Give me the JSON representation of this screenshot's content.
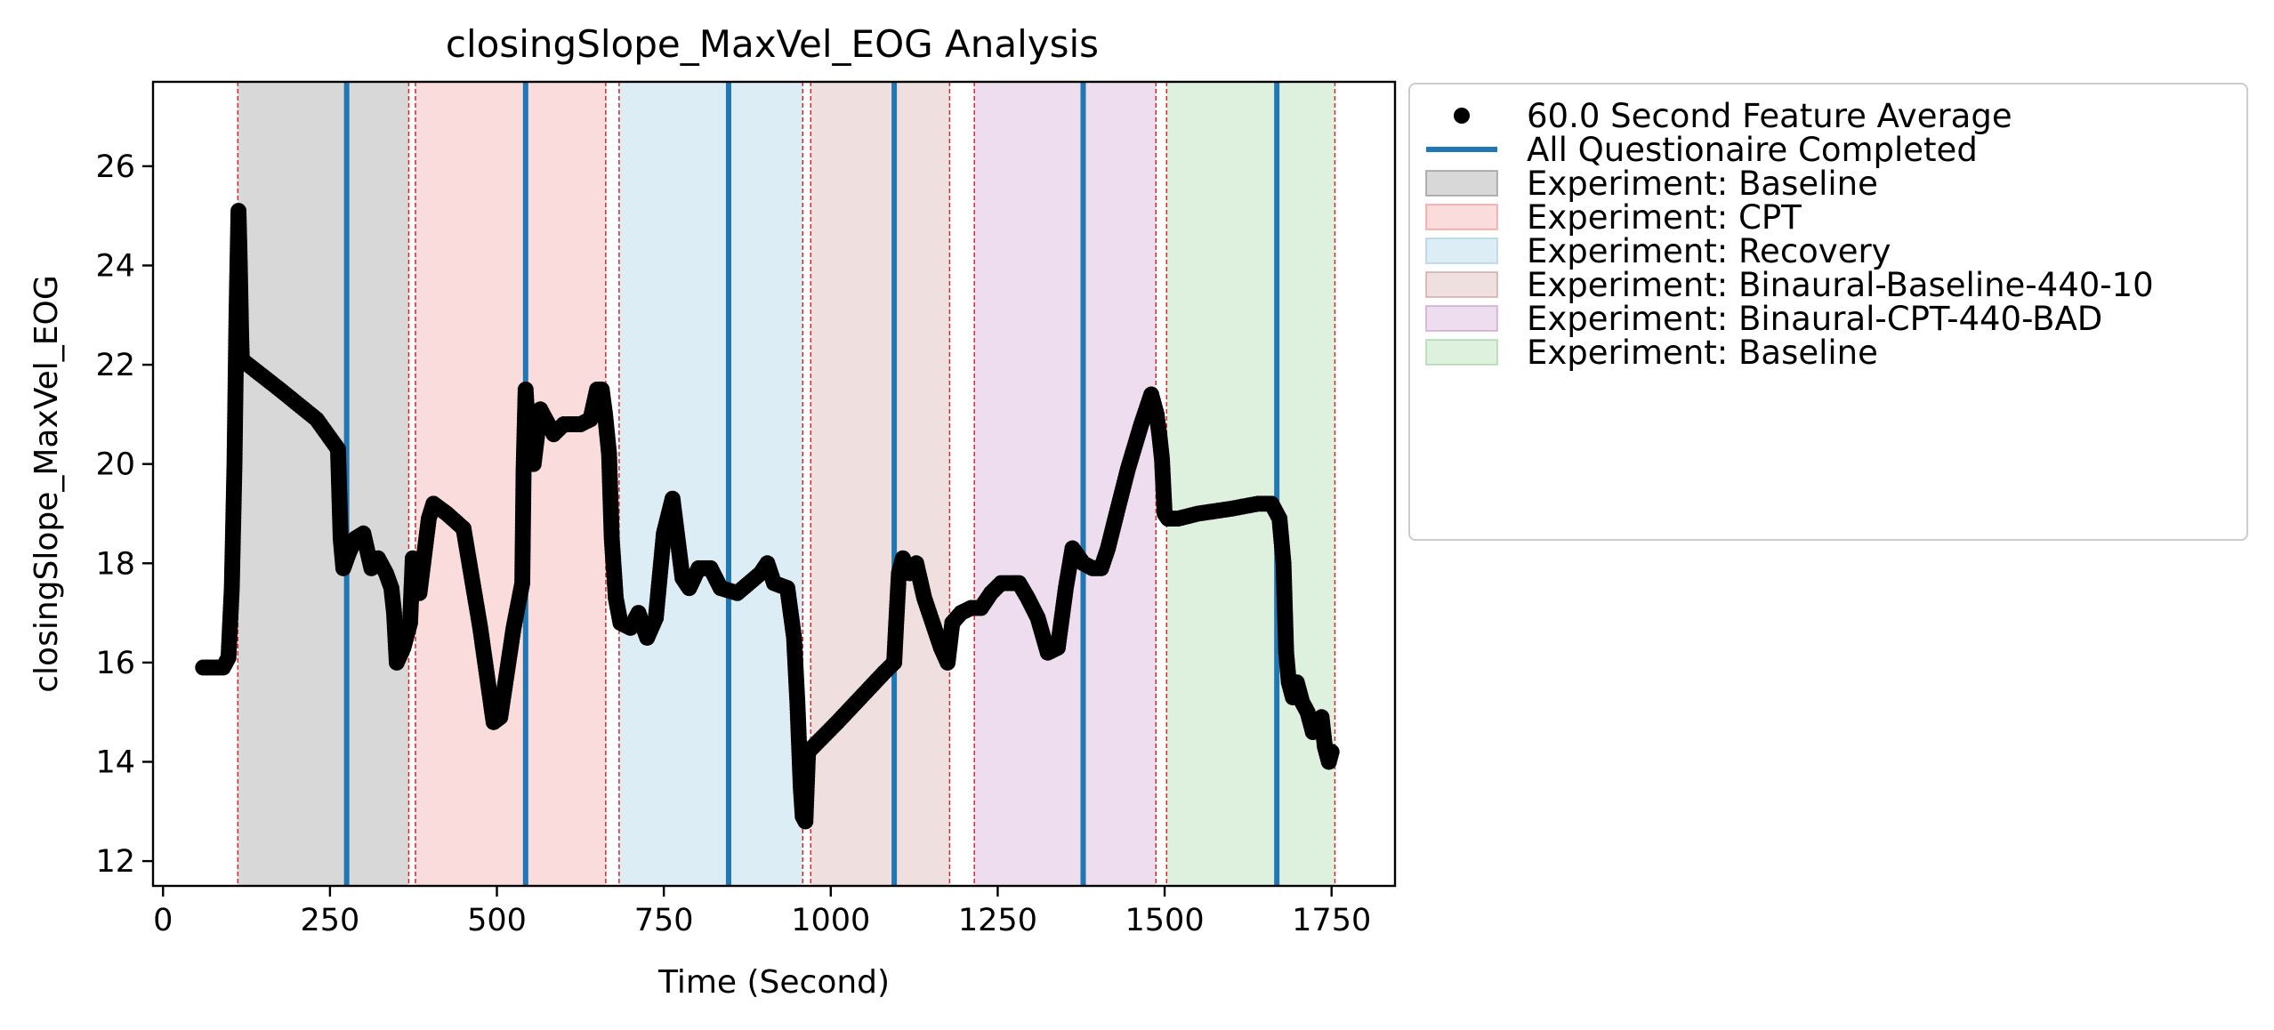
{
  "chart_data": {
    "type": "scatter",
    "title": "closingSlope_MaxVel_EOG Analysis",
    "xlabel": "Time (Second)",
    "ylabel": "closingSlope_MaxVel_EOG",
    "xlim": [
      -15,
      1845
    ],
    "ylim": [
      11.5,
      27.7
    ],
    "xticks": [
      0,
      250,
      500,
      750,
      1000,
      1250,
      1500,
      1750
    ],
    "yticks": [
      12,
      14,
      16,
      18,
      20,
      22,
      24,
      26
    ],
    "grid": false,
    "legend_position": "outside-right-top",
    "colors": {
      "points": "#000000",
      "questionnaire_line": "#1f77b4",
      "boundary_line": "#d62728"
    },
    "series": [
      {
        "name": "60.0 Second Feature Average",
        "marker": "circle",
        "keypoints": [
          [
            60,
            15.9
          ],
          [
            90,
            15.9
          ],
          [
            98,
            16.1
          ],
          [
            103,
            17.5
          ],
          [
            107,
            20.0
          ],
          [
            110,
            23.0
          ],
          [
            113,
            25.1
          ],
          [
            115,
            24.0
          ],
          [
            117,
            22.6
          ],
          [
            118,
            22.1
          ],
          [
            175,
            21.5
          ],
          [
            230,
            20.9
          ],
          [
            262,
            20.3
          ],
          [
            266,
            18.5
          ],
          [
            270,
            17.9
          ],
          [
            278,
            18.2
          ],
          [
            288,
            18.5
          ],
          [
            300,
            18.6
          ],
          [
            312,
            17.9
          ],
          [
            322,
            18.1
          ],
          [
            334,
            17.8
          ],
          [
            342,
            17.5
          ],
          [
            346,
            17.0
          ],
          [
            350,
            16.0
          ],
          [
            360,
            16.3
          ],
          [
            370,
            16.8
          ],
          [
            374,
            18.1
          ],
          [
            384,
            17.4
          ],
          [
            398,
            18.9
          ],
          [
            405,
            19.2
          ],
          [
            425,
            19.0
          ],
          [
            450,
            18.7
          ],
          [
            475,
            16.7
          ],
          [
            495,
            14.8
          ],
          [
            505,
            14.9
          ],
          [
            525,
            16.7
          ],
          [
            538,
            17.6
          ],
          [
            540,
            19.9
          ],
          [
            543,
            21.5
          ],
          [
            548,
            20.3
          ],
          [
            555,
            20.0
          ],
          [
            565,
            21.1
          ],
          [
            585,
            20.6
          ],
          [
            600,
            20.8
          ],
          [
            625,
            20.8
          ],
          [
            640,
            20.9
          ],
          [
            650,
            21.5
          ],
          [
            657,
            21.5
          ],
          [
            662,
            21.0
          ],
          [
            668,
            20.2
          ],
          [
            672,
            18.5
          ],
          [
            678,
            17.3
          ],
          [
            685,
            16.8
          ],
          [
            700,
            16.7
          ],
          [
            712,
            17.0
          ],
          [
            725,
            16.5
          ],
          [
            738,
            16.9
          ],
          [
            750,
            18.6
          ],
          [
            763,
            19.3
          ],
          [
            778,
            17.7
          ],
          [
            788,
            17.5
          ],
          [
            802,
            17.9
          ],
          [
            820,
            17.9
          ],
          [
            835,
            17.5
          ],
          [
            860,
            17.4
          ],
          [
            895,
            17.8
          ],
          [
            905,
            18.0
          ],
          [
            915,
            17.6
          ],
          [
            935,
            17.5
          ],
          [
            945,
            16.5
          ],
          [
            950,
            15.2
          ],
          [
            955,
            13.5
          ],
          [
            958,
            12.9
          ],
          [
            962,
            12.8
          ],
          [
            966,
            14.2
          ],
          [
            1010,
            14.8
          ],
          [
            1080,
            15.8
          ],
          [
            1095,
            16.0
          ],
          [
            1098,
            16.8
          ],
          [
            1102,
            17.8
          ],
          [
            1108,
            18.1
          ],
          [
            1118,
            17.8
          ],
          [
            1128,
            18.0
          ],
          [
            1140,
            17.3
          ],
          [
            1155,
            16.7
          ],
          [
            1165,
            16.3
          ],
          [
            1175,
            16.0
          ],
          [
            1182,
            16.8
          ],
          [
            1195,
            17.0
          ],
          [
            1210,
            17.1
          ],
          [
            1225,
            17.1
          ],
          [
            1240,
            17.4
          ],
          [
            1255,
            17.6
          ],
          [
            1270,
            17.6
          ],
          [
            1282,
            17.6
          ],
          [
            1295,
            17.3
          ],
          [
            1310,
            16.9
          ],
          [
            1325,
            16.2
          ],
          [
            1340,
            16.3
          ],
          [
            1352,
            17.5
          ],
          [
            1362,
            18.3
          ],
          [
            1378,
            18.0
          ],
          [
            1392,
            17.9
          ],
          [
            1405,
            17.9
          ],
          [
            1415,
            18.3
          ],
          [
            1428,
            19.0
          ],
          [
            1445,
            19.9
          ],
          [
            1465,
            20.8
          ],
          [
            1480,
            21.4
          ],
          [
            1488,
            21.0
          ],
          [
            1492,
            20.6
          ],
          [
            1496,
            20.1
          ],
          [
            1500,
            19.0
          ],
          [
            1505,
            18.9
          ],
          [
            1520,
            18.9
          ],
          [
            1550,
            19.0
          ],
          [
            1600,
            19.1
          ],
          [
            1640,
            19.2
          ],
          [
            1660,
            19.2
          ],
          [
            1672,
            18.9
          ],
          [
            1678,
            18.0
          ],
          [
            1682,
            16.2
          ],
          [
            1686,
            15.6
          ],
          [
            1692,
            15.3
          ],
          [
            1698,
            15.6
          ],
          [
            1706,
            15.2
          ],
          [
            1714,
            15.0
          ],
          [
            1722,
            14.6
          ],
          [
            1728,
            14.8
          ],
          [
            1735,
            14.9
          ],
          [
            1740,
            14.3
          ],
          [
            1746,
            14.0
          ],
          [
            1750,
            14.2
          ]
        ]
      }
    ],
    "questionnaire_lines": {
      "name": "All Questionaire Completed",
      "x": [
        275,
        543,
        847,
        1095,
        1378,
        1668
      ]
    },
    "phase_boundaries_x": [
      112,
      368,
      378,
      663,
      683,
      958,
      970,
      1178,
      1215,
      1487,
      1503,
      1755
    ],
    "phases": [
      {
        "name": "Experiment: Baseline",
        "start": 112,
        "end": 368,
        "color": "#7f7f7f",
        "alpha": 0.3
      },
      {
        "name": "Experiment: CPT",
        "start": 378,
        "end": 663,
        "color": "#f08080",
        "alpha": 0.28
      },
      {
        "name": "Experiment: Recovery",
        "start": 683,
        "end": 958,
        "color": "#9ecae1",
        "alpha": 0.35
      },
      {
        "name": "Experiment: Binaural-Baseline-440-10",
        "start": 970,
        "end": 1178,
        "color": "#c78b8b",
        "alpha": 0.28
      },
      {
        "name": "Experiment: Binaural-CPT-440-BAD",
        "start": 1215,
        "end": 1487,
        "color": "#c38ec7",
        "alpha": 0.3
      },
      {
        "name": "Experiment: Baseline",
        "start": 1503,
        "end": 1755,
        "color": "#98d098",
        "alpha": 0.32
      }
    ]
  }
}
